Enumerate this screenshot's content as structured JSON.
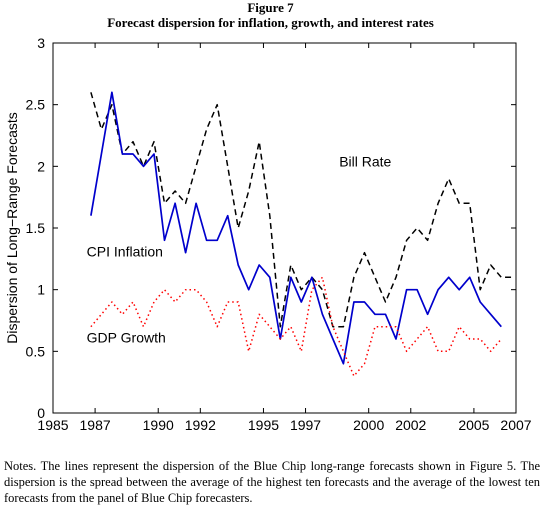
{
  "figure": {
    "label": "Figure 7",
    "title": "Forecast dispersion for inflation, growth, and interest rates"
  },
  "notes": "Notes. The lines represent the dispersion of the Blue Chip long-range forecasts shown in Figure 5. The dispersion is the spread between the average of the highest ten forecasts and the average of the lowest ten forecasts from the panel of Blue Chip forecasters.",
  "chart_data": {
    "type": "line",
    "title": "",
    "xlabel": "",
    "ylabel": "Dispersion of Long−Range Forecasts",
    "xlim": [
      1985,
      2007
    ],
    "ylim": [
      0,
      3
    ],
    "xticks": [
      1985,
      1987,
      1990,
      1992,
      1995,
      1997,
      2000,
      2002,
      2005,
      2007
    ],
    "yticks": [
      0,
      0.5,
      1,
      1.5,
      2,
      2.5,
      3
    ],
    "grid": false,
    "series": [
      {
        "name": "Bill Rate",
        "color": "#000000",
        "style": "dashed",
        "x": [
          1986.8,
          1987.3,
          1987.8,
          1988.3,
          1988.8,
          1989.3,
          1989.8,
          1990.3,
          1990.8,
          1991.3,
          1991.8,
          1992.3,
          1992.8,
          1993.3,
          1993.8,
          1994.3,
          1994.8,
          1995.3,
          1995.8,
          1996.3,
          1996.8,
          1997.3,
          1997.8,
          1998.3,
          1998.8,
          1999.3,
          1999.8,
          2000.3,
          2000.8,
          2001.3,
          2001.8,
          2002.3,
          2002.8,
          2003.3,
          2003.8,
          2004.3,
          2004.8,
          2005.3,
          2005.8,
          2006.3,
          2006.8
        ],
        "y": [
          2.6,
          2.3,
          2.5,
          2.1,
          2.2,
          2.0,
          2.2,
          1.7,
          1.8,
          1.7,
          2.0,
          2.3,
          2.5,
          2.0,
          1.5,
          1.8,
          2.2,
          1.6,
          0.7,
          1.2,
          1.0,
          1.1,
          1.0,
          0.7,
          0.7,
          1.1,
          1.3,
          1.1,
          0.9,
          1.1,
          1.4,
          1.5,
          1.4,
          1.7,
          1.9,
          1.7,
          1.7,
          1.0,
          1.2,
          1.1,
          1.1
        ]
      },
      {
        "name": "CPI Inflation",
        "color": "#0000cc",
        "style": "solid",
        "x": [
          1986.8,
          1987.3,
          1987.8,
          1988.3,
          1988.8,
          1989.3,
          1989.8,
          1990.3,
          1990.8,
          1991.3,
          1991.8,
          1992.3,
          1992.8,
          1993.3,
          1993.8,
          1994.3,
          1994.8,
          1995.3,
          1995.8,
          1996.3,
          1996.8,
          1997.3,
          1997.8,
          1998.3,
          1998.8,
          1999.3,
          1999.8,
          2000.3,
          2000.8,
          2001.3,
          2001.8,
          2002.3,
          2002.8,
          2003.3,
          2003.8,
          2004.3,
          2004.8,
          2005.3,
          2005.8,
          2006.3
        ],
        "y": [
          1.6,
          2.1,
          2.6,
          2.1,
          2.1,
          2.0,
          2.1,
          1.4,
          1.7,
          1.3,
          1.7,
          1.4,
          1.4,
          1.6,
          1.2,
          1.0,
          1.2,
          1.1,
          0.6,
          1.1,
          0.9,
          1.1,
          0.8,
          0.6,
          0.4,
          0.9,
          0.9,
          0.8,
          0.8,
          0.6,
          1.0,
          1.0,
          0.8,
          1.0,
          1.1,
          1.0,
          1.1,
          0.9,
          0.8,
          0.7
        ]
      },
      {
        "name": "GDP Growth",
        "color": "#ff0000",
        "style": "dotted",
        "x": [
          1986.8,
          1987.3,
          1987.8,
          1988.3,
          1988.8,
          1989.3,
          1989.8,
          1990.3,
          1990.8,
          1991.3,
          1991.8,
          1992.3,
          1992.8,
          1993.3,
          1993.8,
          1994.3,
          1994.8,
          1995.3,
          1995.8,
          1996.3,
          1996.8,
          1997.3,
          1997.8,
          1998.3,
          1998.8,
          1999.3,
          1999.8,
          2000.3,
          2000.8,
          2001.3,
          2001.8,
          2002.3,
          2002.8,
          2003.3,
          2003.8,
          2004.3,
          2004.8,
          2005.3,
          2005.8,
          2006.3
        ],
        "y": [
          0.7,
          0.8,
          0.9,
          0.8,
          0.9,
          0.7,
          0.9,
          1.0,
          0.9,
          1.0,
          1.0,
          0.9,
          0.7,
          0.9,
          0.9,
          0.5,
          0.8,
          0.7,
          0.6,
          0.7,
          0.5,
          1.0,
          1.1,
          0.7,
          0.5,
          0.3,
          0.4,
          0.7,
          0.7,
          0.7,
          0.5,
          0.6,
          0.7,
          0.5,
          0.5,
          0.7,
          0.6,
          0.6,
          0.5,
          0.6
        ]
      }
    ],
    "annotations": [
      {
        "text": "Bill Rate",
        "x": 1998.6,
        "y": 2.0
      },
      {
        "text": "CPI Inflation",
        "x": 1986.6,
        "y": 1.27
      },
      {
        "text": "GDP Growth",
        "x": 1986.6,
        "y": 0.57
      }
    ]
  }
}
